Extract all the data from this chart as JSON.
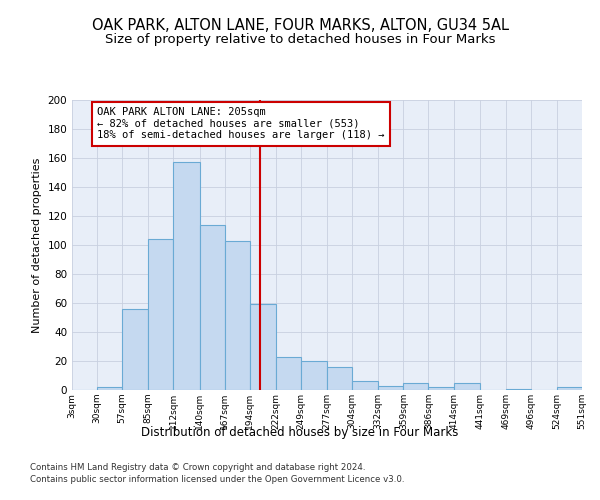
{
  "title": "OAK PARK, ALTON LANE, FOUR MARKS, ALTON, GU34 5AL",
  "subtitle": "Size of property relative to detached houses in Four Marks",
  "xlabel": "Distribution of detached houses by size in Four Marks",
  "ylabel": "Number of detached properties",
  "bin_edges": [
    3,
    30,
    57,
    85,
    112,
    140,
    167,
    194,
    222,
    249,
    277,
    304,
    332,
    359,
    386,
    414,
    441,
    469,
    496,
    524,
    551
  ],
  "bar_heights": [
    0,
    2,
    56,
    104,
    157,
    114,
    103,
    59,
    23,
    20,
    16,
    6,
    3,
    5,
    2,
    5,
    0,
    1,
    0,
    2
  ],
  "xlabels": [
    "3sqm",
    "30sqm",
    "57sqm",
    "85sqm",
    "112sqm",
    "140sqm",
    "167sqm",
    "194sqm",
    "222sqm",
    "249sqm",
    "277sqm",
    "304sqm",
    "332sqm",
    "359sqm",
    "386sqm",
    "414sqm",
    "441sqm",
    "469sqm",
    "496sqm",
    "524sqm",
    "551sqm"
  ],
  "bar_color": "#c5d9f0",
  "bar_edge_color": "#6aaad4",
  "vline_x": 205,
  "vline_color": "#cc0000",
  "annotation_line1": "OAK PARK ALTON LANE: 205sqm",
  "annotation_line2": "← 82% of detached houses are smaller (553)",
  "annotation_line3": "18% of semi-detached houses are larger (118) →",
  "annotation_box_color": "#cc0000",
  "footer1": "Contains HM Land Registry data © Crown copyright and database right 2024.",
  "footer2": "Contains public sector information licensed under the Open Government Licence v3.0.",
  "ylim": [
    0,
    200
  ],
  "yticks": [
    0,
    20,
    40,
    60,
    80,
    100,
    120,
    140,
    160,
    180,
    200
  ],
  "grid_color": "#c8d0e0",
  "bg_color": "#e8eef8",
  "title_fontsize": 10.5,
  "subtitle_fontsize": 9.5,
  "ylabel_fontsize": 8,
  "xlabel_fontsize": 8.5
}
